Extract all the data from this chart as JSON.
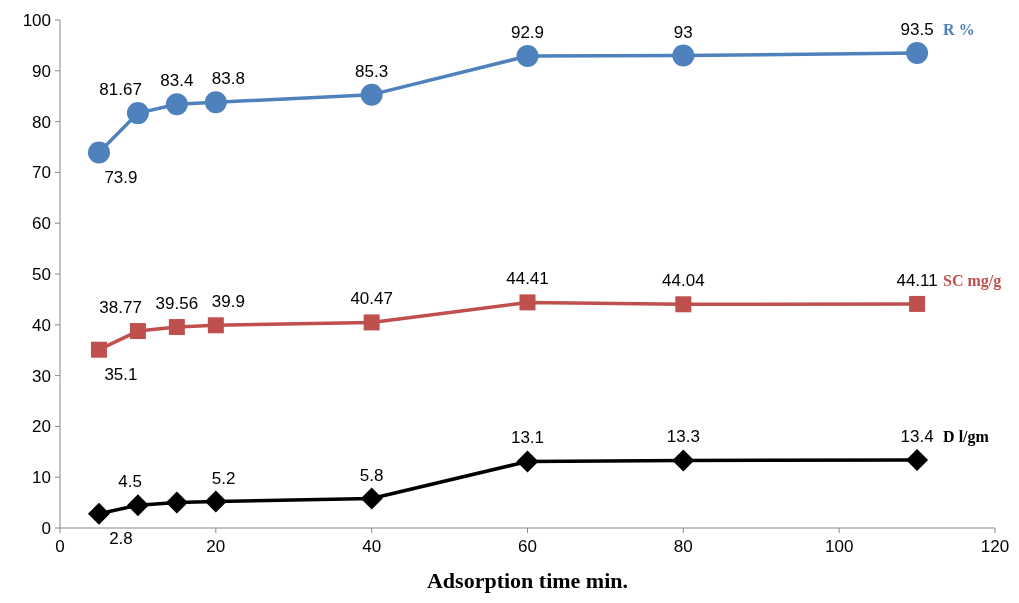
{
  "chart_data": {
    "type": "line",
    "xlabel": "Adsorption time min.",
    "x": [
      5,
      10,
      15,
      20,
      40,
      60,
      80,
      110
    ],
    "xlim": [
      0,
      120
    ],
    "xticks": [
      0,
      20,
      40,
      60,
      80,
      100,
      120
    ],
    "ylim": [
      0,
      100
    ],
    "yticks": [
      0,
      10,
      20,
      30,
      40,
      50,
      60,
      70,
      80,
      90,
      100
    ],
    "grid": false,
    "line_style": "solid",
    "series": [
      {
        "name": "R  %",
        "color": "#4f81bd",
        "marker": "circle",
        "values": [
          73.9,
          81.67,
          83.4,
          83.8,
          85.3,
          92.9,
          93,
          93.5
        ],
        "value_labels": [
          "73.9",
          "81.67",
          "83.4",
          "83.8",
          "85.3",
          "92.9",
          "93",
          "93.5"
        ]
      },
      {
        "name": "SC mg/g",
        "color": "#c0504d",
        "marker": "square",
        "values": [
          35.1,
          38.77,
          39.56,
          39.9,
          40.47,
          44.41,
          44.04,
          44.11
        ],
        "value_labels": [
          "35.1",
          "38.77",
          "39.56",
          "39.9",
          "40.47",
          "44.41",
          "44.04",
          "44.11"
        ]
      },
      {
        "name": "D  l/gm",
        "color": "#000000",
        "marker": "diamond",
        "values": [
          2.8,
          4.5,
          5,
          5.2,
          5.8,
          13.1,
          13.3,
          13.4
        ],
        "value_labels": [
          "2.8",
          "4.5",
          null,
          "5.2",
          "5.8",
          "13.1",
          "13.3",
          "13.4"
        ]
      }
    ]
  }
}
